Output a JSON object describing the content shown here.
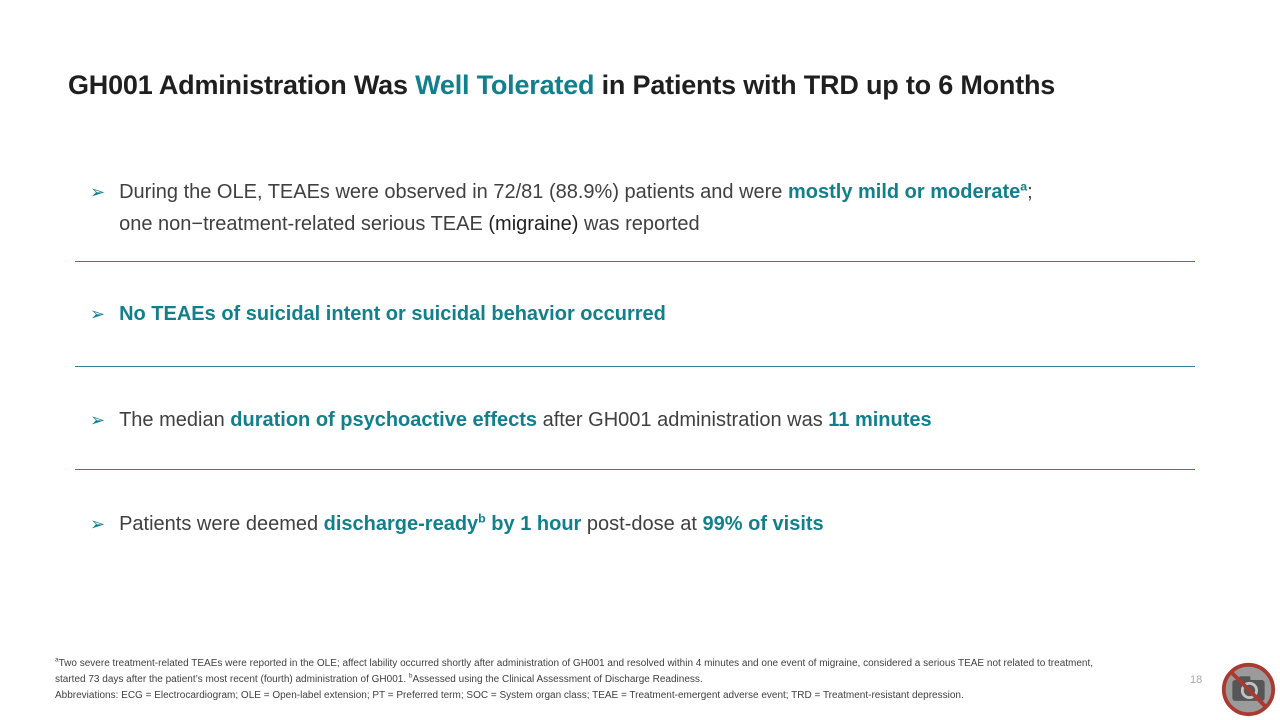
{
  "colors": {
    "accent": "#12808C",
    "divider": "#31849B",
    "title_text": "#3A3A3A",
    "body_text": "#404040",
    "dark_text": "#1F1F1F",
    "footnote_text": "#3F3F3F",
    "page_number_text": "#A9A9A9"
  },
  "title": {
    "segments": [
      {
        "t": "GH001 Administration Was ",
        "s": "dark"
      },
      {
        "t": "Well Tolerated",
        "s": "accent"
      },
      {
        "t": " in Patients with TRD up to 6 Months",
        "s": "dark"
      }
    ]
  },
  "bullets": {
    "glyph": "➢",
    "items": [
      {
        "segments": [
          {
            "t": "During the OLE, TEAEs were observed in 72/81 (88.9%) patients and were ",
            "s": "normal"
          },
          {
            "t": "mostly mild or moderate",
            "s": "accent"
          },
          {
            "t": "a",
            "s": "accent-sup"
          },
          {
            "t": "; one non−treatment-related serious TEAE ",
            "s": "normal"
          },
          {
            "t": "(migraine)",
            "s": "dark"
          },
          {
            "t": " was reported",
            "s": "normal"
          }
        ]
      },
      {
        "segments": [
          {
            "t": "No TEAEs of suicidal intent or suicidal behavior occurred",
            "s": "accent"
          }
        ]
      },
      {
        "segments": [
          {
            "t": "The median ",
            "s": "normal"
          },
          {
            "t": "duration of psychoactive effects",
            "s": "accent"
          },
          {
            "t": " after GH001 administration was ",
            "s": "normal"
          },
          {
            "t": "11 minutes",
            "s": "accent"
          }
        ]
      },
      {
        "segments": [
          {
            "t": "Patients were deemed ",
            "s": "normal"
          },
          {
            "t": "discharge-ready",
            "s": "accent"
          },
          {
            "t": "b",
            "s": "accent-sup"
          },
          {
            "t": " by 1 hour",
            "s": "accent"
          },
          {
            "t": " post-dose at ",
            "s": "normal"
          },
          {
            "t": "99% of visits",
            "s": "accent"
          }
        ]
      }
    ]
  },
  "footnotes": {
    "lines": [
      {
        "segments": [
          {
            "t": "a",
            "s": "sup"
          },
          {
            "t": "Two severe treatment-related TEAEs were reported in the OLE; affect lability occurred shortly after administration of GH001 and resolved within 4 minutes and one event of migraine, considered a serious TEAE not related to treatment,",
            "s": "normal"
          }
        ]
      },
      {
        "segments": [
          {
            "t": "started 73 days after the patient’s most recent (fourth) administration of GH001. ",
            "s": "normal"
          },
          {
            "t": "b",
            "s": "sup"
          },
          {
            "t": "Assessed using the Clinical Assessment of Discharge Readiness.",
            "s": "normal"
          }
        ]
      },
      {
        "segments": [
          {
            "t": "Abbreviations: ECG = Electrocardiogram; OLE = Open-label extension; PT = Preferred term; SOC = System organ class; TEAE = Treatment-emergent adverse event; TRD = Treatment-resistant depression.",
            "s": "normal"
          }
        ]
      }
    ]
  },
  "page_number": "18"
}
